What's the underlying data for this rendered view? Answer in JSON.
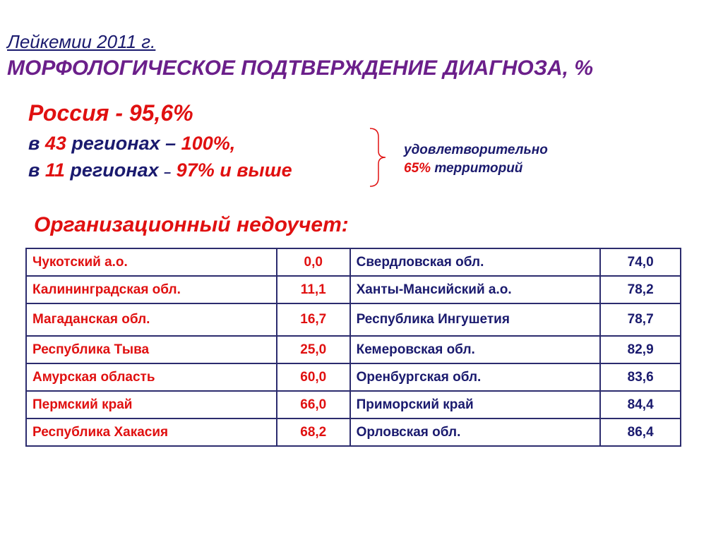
{
  "header": {
    "title_line1": "Лейкемии 2011 г.",
    "title_line2": "МОРФОЛОГИЧЕСКОЕ ПОДТВЕРЖДЕНИЕ ДИАГНОЗА, %"
  },
  "summary": {
    "russia": "Россия - 95,6%",
    "line1_prefix": "в",
    "line1_count": "43",
    "line1_mid": "регионах –",
    "line1_value": "100%,",
    "line2_prefix": "в",
    "line2_count": "11",
    "line2_mid": "регионах",
    "line2_dash": "–",
    "line2_value": "97% и выше",
    "note_line1": "удовлетворительно",
    "note_percent": "65%",
    "note_rest": "территорий"
  },
  "section_title": "Организационный недоучет:",
  "table": {
    "rows": [
      {
        "left_name": "Чукотский а.о.",
        "left_value": "0,0",
        "right_name": "Свердловская обл.",
        "right_value": "74,0"
      },
      {
        "left_name": "Калининградская обл.",
        "left_value": "11,1",
        "right_name": "Ханты-Мансийский а.о.",
        "right_value": "78,2"
      },
      {
        "left_name": "Магаданская обл.",
        "left_value": "16,7",
        "right_name": "Республика Ингушетия",
        "right_value": "78,7"
      },
      {
        "left_name": "Республика Тыва",
        "left_value": "25,0",
        "right_name": "Кемеровская обл.",
        "right_value": "82,9"
      },
      {
        "left_name": "Амурская область",
        "left_value": "60,0",
        "right_name": "Оренбургская обл.",
        "right_value": "83,6"
      },
      {
        "left_name": "Пермский край",
        "left_value": "66,0",
        "right_name": "Приморский край",
        "right_value": "84,4"
      },
      {
        "left_name": "Республика Хакасия",
        "left_value": "68,2",
        "right_name": "Орловская обл.",
        "right_value": "86,4"
      }
    ]
  },
  "colors": {
    "red": "#e01010",
    "navy": "#1a1a6e",
    "purple": "#6b1f8a"
  }
}
